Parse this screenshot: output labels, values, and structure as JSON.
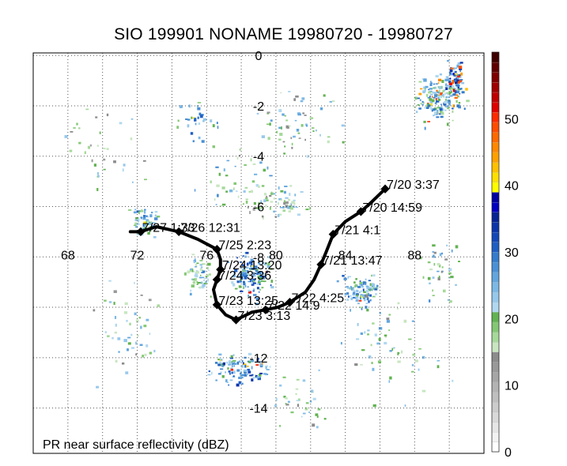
{
  "title": "SIO 199901 NONAME 19980720 - 19980727",
  "caption": "PR near surface reflectivity (dBZ)",
  "map": {
    "lon_range": [
      66,
      92
    ],
    "lat_range": [
      -15.8,
      0.1
    ],
    "lon_ticks": [
      "68",
      "72",
      "76",
      "80",
      "84",
      "88"
    ],
    "lat_ticks": [
      "0",
      "-2",
      "-4",
      "-6",
      "-8",
      "-12",
      "-14"
    ],
    "grid_lons": [
      68,
      70,
      72,
      74,
      76,
      78,
      80,
      82,
      84,
      86,
      88,
      90
    ],
    "grid_lats": [
      0,
      -2,
      -4,
      -6,
      -8,
      -10,
      -12,
      -14
    ]
  },
  "track": {
    "points": [
      {
        "lon": 86.3,
        "lat": -5.3
      },
      {
        "lon": 85.4,
        "lat": -5.9
      },
      {
        "lon": 84.9,
        "lat": -6.2
      },
      {
        "lon": 84.0,
        "lat": -6.6
      },
      {
        "lon": 83.3,
        "lat": -7.1
      },
      {
        "lon": 82.9,
        "lat": -7.8
      },
      {
        "lon": 82.6,
        "lat": -8.3
      },
      {
        "lon": 82.2,
        "lat": -8.9
      },
      {
        "lon": 81.7,
        "lat": -9.4
      },
      {
        "lon": 80.8,
        "lat": -9.8
      },
      {
        "lon": 80.1,
        "lat": -10.0
      },
      {
        "lon": 79.4,
        "lat": -10.1
      },
      {
        "lon": 78.6,
        "lat": -10.2
      },
      {
        "lon": 77.7,
        "lat": -10.5
      },
      {
        "lon": 77.1,
        "lat": -10.3
      },
      {
        "lon": 76.6,
        "lat": -9.9
      },
      {
        "lon": 76.4,
        "lat": -9.3
      },
      {
        "lon": 76.6,
        "lat": -8.9
      },
      {
        "lon": 76.8,
        "lat": -8.5
      },
      {
        "lon": 76.8,
        "lat": -8.1
      },
      {
        "lon": 76.6,
        "lat": -7.7
      },
      {
        "lon": 75.5,
        "lat": -7.3
      },
      {
        "lon": 74.4,
        "lat": -7.0
      },
      {
        "lon": 73.1,
        "lat": -6.8
      },
      {
        "lon": 72.2,
        "lat": -7.0
      },
      {
        "lon": 71.6,
        "lat": -7.0
      }
    ],
    "fixes": [
      {
        "label": "7/20 3:37",
        "lon": 86.3,
        "lat": -5.3
      },
      {
        "label": "7/20 14:59",
        "lon": 84.9,
        "lat": -6.2
      },
      {
        "label": "7/21 4:1",
        "lon": 83.3,
        "lat": -7.1
      },
      {
        "label": "7/21 13:47",
        "lon": 82.6,
        "lat": -8.3
      },
      {
        "label": "7/22 4:25",
        "lon": 80.8,
        "lat": -9.8
      },
      {
        "label": "7/22 14:9",
        "lon": 79.4,
        "lat": -10.1
      },
      {
        "label": "7/23 3:13",
        "lon": 77.7,
        "lat": -10.5
      },
      {
        "label": "7/23 13:25",
        "lon": 76.6,
        "lat": -9.9
      },
      {
        "label": "7/24 3:36",
        "lon": 76.6,
        "lat": -8.9
      },
      {
        "label": "7/24 13:20",
        "lon": 76.8,
        "lat": -8.5
      },
      {
        "label": "7/25 2:23",
        "lon": 76.6,
        "lat": -7.7
      },
      {
        "label": "7/26 12:31",
        "lon": 74.4,
        "lat": -7.0
      },
      {
        "label": "7/27 1:33",
        "lon": 72.2,
        "lat": -7.0
      }
    ]
  },
  "colorbar": {
    "min": 0,
    "max": 60,
    "tick_labels": [
      "0",
      "10",
      "20",
      "30",
      "40",
      "50"
    ],
    "tick_values": [
      0,
      10,
      20,
      30,
      40,
      50
    ],
    "colors": [
      "#ffffff",
      "#f2f2f2",
      "#e6e6e6",
      "#d9d9d9",
      "#cccccc",
      "#bfbfbf",
      "#b3b3b3",
      "#a6a6a6",
      "#999999",
      "#8c8c8c",
      "#c8e6c0",
      "#a6d99a",
      "#84c874",
      "#62b352",
      "#b0d8f0",
      "#96c8ec",
      "#7cb8e6",
      "#62a6de",
      "#4a90d6",
      "#347ccc",
      "#1f5fc4",
      "#1448b8",
      "#0c34aa",
      "#062494",
      "#0000c0",
      "#0000a0",
      "#ffff00",
      "#ffe000",
      "#ffc000",
      "#ffa000",
      "#ff8800",
      "#ff6a00",
      "#ff4c00",
      "#ff2a00",
      "#e00000",
      "#c00000",
      "#a00000",
      "#800000",
      "#600000",
      "#400000"
    ]
  },
  "rain_clusters": [
    {
      "lon": 89.4,
      "lat": -1.6,
      "lon_r": 1.9,
      "lat_r": 1.3,
      "dbz": 24,
      "n": 170,
      "hot": 0.12
    },
    {
      "lon": 90.3,
      "lat": -0.8,
      "lon_r": 0.7,
      "lat_r": 1.0,
      "dbz": 30,
      "n": 60,
      "hot": 0.2
    },
    {
      "lon": 78.5,
      "lat": -8.7,
      "lon_r": 1.6,
      "lat_r": 1.2,
      "dbz": 26,
      "n": 130,
      "hot": 0.04
    },
    {
      "lon": 77.7,
      "lat": -12.4,
      "lon_r": 2.4,
      "lat_r": 0.8,
      "dbz": 27,
      "n": 110,
      "hot": 0.03
    },
    {
      "lon": 84.8,
      "lat": -9.3,
      "lon_r": 1.6,
      "lat_r": 0.9,
      "dbz": 25,
      "n": 100,
      "hot": 0.05
    },
    {
      "lon": 72.4,
      "lat": -6.6,
      "lon_r": 1.2,
      "lat_r": 0.7,
      "dbz": 24,
      "n": 60,
      "hot": 0.02
    },
    {
      "lon": 75.5,
      "lat": -8.7,
      "lon_r": 1.0,
      "lat_r": 1.2,
      "dbz": 22,
      "n": 60,
      "hot": 0.0
    },
    {
      "lon": 80.3,
      "lat": -5.8,
      "lon_r": 2.2,
      "lat_r": 0.8,
      "dbz": 20,
      "n": 60,
      "hot": 0.0
    },
    {
      "lon": 81.2,
      "lat": -2.5,
      "lon_r": 3.5,
      "lat_r": 2.0,
      "dbz": 20,
      "n": 60,
      "hot": 0.0
    },
    {
      "lon": 71.5,
      "lat": -11.0,
      "lon_r": 3.0,
      "lat_r": 3.0,
      "dbz": 20,
      "n": 50,
      "hot": 0.0
    },
    {
      "lon": 86.5,
      "lat": -11.5,
      "lon_r": 4.0,
      "lat_r": 3.0,
      "dbz": 20,
      "n": 60,
      "hot": 0.0
    },
    {
      "lon": 78.0,
      "lat": -5.0,
      "lon_r": 3.0,
      "lat_r": 2.0,
      "dbz": 21,
      "n": 50,
      "hot": 0.0
    },
    {
      "lon": 70.0,
      "lat": -4.0,
      "lon_r": 3.0,
      "lat_r": 3.0,
      "dbz": 18,
      "n": 35,
      "hot": 0.0
    },
    {
      "lon": 75.5,
      "lat": -2.5,
      "lon_r": 1.5,
      "lat_r": 1.0,
      "dbz": 25,
      "n": 30,
      "hot": 0.02
    },
    {
      "lon": 81.5,
      "lat": -13.7,
      "lon_r": 2.5,
      "lat_r": 1.5,
      "dbz": 19,
      "n": 35,
      "hot": 0.0
    },
    {
      "lon": 89.5,
      "lat": -8.5,
      "lon_r": 1.6,
      "lat_r": 2.0,
      "dbz": 21,
      "n": 40,
      "hot": 0.0
    }
  ]
}
